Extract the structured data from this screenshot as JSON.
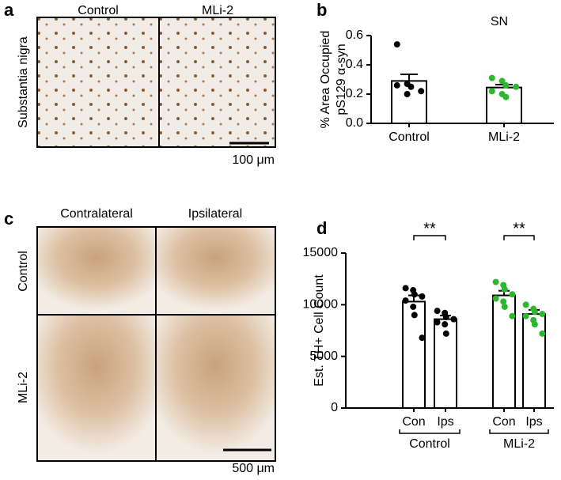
{
  "panel_a": {
    "letter": "a",
    "columns": [
      "Control",
      "MLi-2"
    ],
    "row_label": "Substantia nigra",
    "scale_bar": "100 μm"
  },
  "panel_c": {
    "letter": "c",
    "columns": [
      "Contralateral",
      "Ipsilateral"
    ],
    "rows": [
      "Control",
      "MLi-2"
    ],
    "scale_bar": "500 μm"
  },
  "chart_data": [
    {
      "type": "bar",
      "letter": "b",
      "title": "SN",
      "ylabel": [
        "% Area Occupied",
        "pS129 α-syn"
      ],
      "categories": [
        "Control",
        "MLi-2"
      ],
      "values": [
        0.29,
        0.245
      ],
      "errors": [
        0.045,
        0.02
      ],
      "points": [
        [
          0.54,
          0.27,
          0.25,
          0.22,
          0.26,
          0.2
        ],
        [
          0.31,
          0.29,
          0.26,
          0.25,
          0.22,
          0.2,
          0.18
        ]
      ],
      "point_colors": [
        "#000000",
        "#2db72d"
      ],
      "bar_color": "#ffffff",
      "ylim": [
        0,
        0.6
      ],
      "yticks": [
        {
          "value": 0,
          "label": "0.0"
        },
        0.2,
        0.4,
        0.6
      ]
    },
    {
      "type": "bar",
      "letter": "d",
      "ylabel": [
        "Est. TH+ Cell Count"
      ],
      "categories": [
        "Con",
        "Ips",
        "Con",
        "Ips"
      ],
      "groups": [
        "Control",
        "MLi-2"
      ],
      "values": [
        10300,
        8600,
        10900,
        9100
      ],
      "errors": [
        600,
        350,
        450,
        400
      ],
      "points": [
        [
          11600,
          11400,
          11000,
          10800,
          10400,
          9800,
          9000,
          6800
        ],
        [
          9400,
          9200,
          8800,
          8600,
          8300,
          8100,
          7200
        ],
        [
          12200,
          11900,
          11500,
          11000,
          10600,
          10300,
          9800,
          8900
        ],
        [
          10000,
          9600,
          9300,
          9100,
          8900,
          8500,
          8100,
          7200
        ]
      ],
      "point_colors": [
        "#000000",
        "#000000",
        "#2db72d",
        "#2db72d"
      ],
      "bar_color": "#ffffff",
      "annotations": [
        "**",
        "**"
      ],
      "ylim": [
        0,
        15000
      ],
      "yticks": [
        0,
        5000,
        10000,
        15000
      ]
    }
  ]
}
